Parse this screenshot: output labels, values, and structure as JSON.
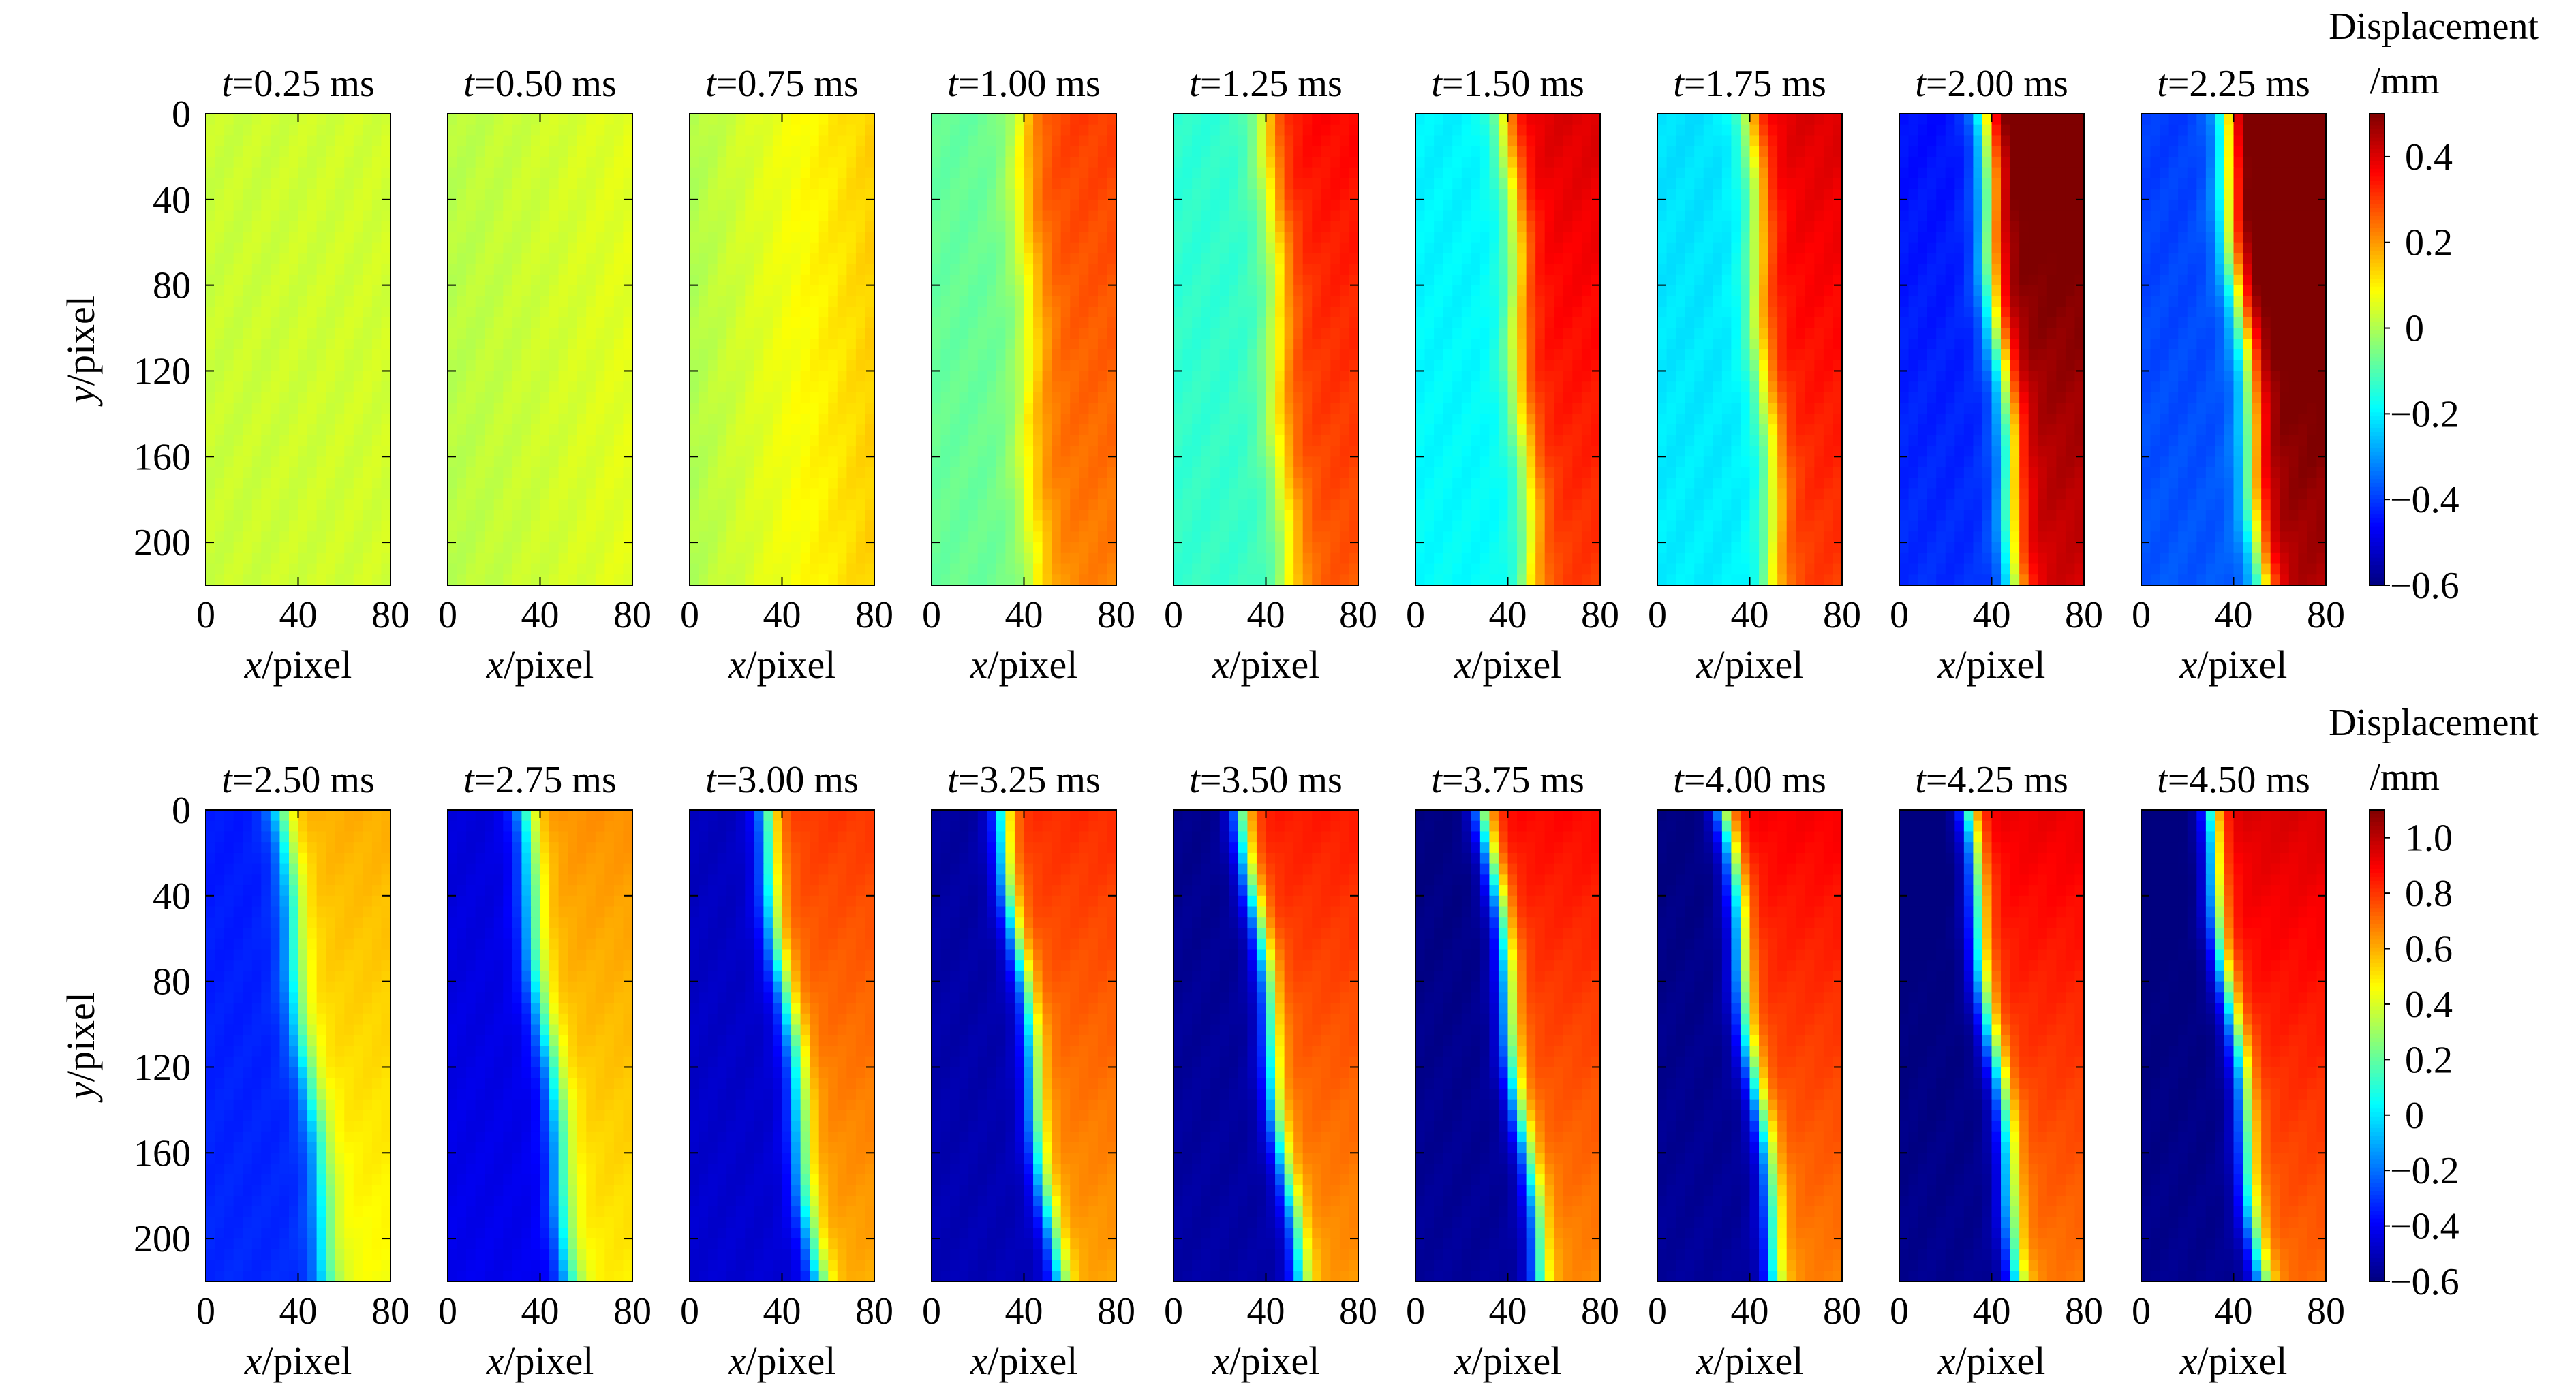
{
  "chart_data": {
    "type": "heatmap",
    "quantity": "Displacement",
    "unit": "/mm",
    "x_range": [
      0,
      80
    ],
    "y_range": [
      0,
      220
    ],
    "y_inverted": true,
    "xlabel_var": "x",
    "xlabel_unit": "/pixel",
    "ylabel_var": "y",
    "ylabel_unit": "/pixel",
    "x_ticks": [
      0,
      40,
      80
    ],
    "y_ticks": [
      0,
      40,
      80,
      120,
      160,
      200
    ],
    "colormap": [
      "#00007f",
      "#0000ff",
      "#0080ff",
      "#00ffff",
      "#80ff80",
      "#ffff00",
      "#ff8000",
      "#ff0000",
      "#7f0000"
    ],
    "rows": [
      {
        "colorbar_range": [
          -0.6,
          0.5
        ],
        "colorbar_ticks": [
          0.4,
          0.2,
          0,
          -0.2,
          -0.4,
          -0.6
        ],
        "colorbar_tick_labels": [
          "0.4",
          "0.2",
          "0",
          "−0.2",
          "−0.4",
          "−0.6"
        ],
        "panels": [
          {
            "var": "t",
            "time": "=0.25 ms",
            "params": {
              "left": 0.03,
              "right": 0.04,
              "slope": 0.0,
              "base": 0.0,
              "half": 0.0
            }
          },
          {
            "var": "t",
            "time": "=0.50 ms",
            "params": {
              "left": 0.01,
              "right": 0.06,
              "slope": 0.02,
              "base": 0.0,
              "half": 0.0
            }
          },
          {
            "var": "t",
            "time": "=0.75 ms",
            "params": {
              "left": 0.0,
              "right": 0.14,
              "slope": 0.03,
              "base": 0.0,
              "half": 0.0
            }
          },
          {
            "var": "t",
            "time": "=1.00 ms",
            "params": {
              "left": -0.08,
              "right": 0.3,
              "slope": 0.06,
              "base": 0.5,
              "half": 0.16
            }
          },
          {
            "var": "t",
            "time": "=1.25 ms",
            "params": {
              "left": -0.14,
              "right": 0.36,
              "slope": 0.1,
              "base": 0.52,
              "half": 0.15
            }
          },
          {
            "var": "t",
            "time": "=1.50 ms",
            "params": {
              "left": -0.2,
              "right": 0.4,
              "slope": 0.13,
              "base": 0.5,
              "half": 0.13
            }
          },
          {
            "var": "t",
            "time": "=1.75 ms",
            "params": {
              "left": -0.22,
              "right": 0.4,
              "slope": 0.15,
              "base": 0.5,
              "half": 0.13
            }
          },
          {
            "var": "t",
            "time": "=2.00 ms",
            "params": {
              "left": -0.45,
              "right": 0.55,
              "slope": 0.2,
              "base": 0.45,
              "half": 0.12
            }
          },
          {
            "var": "t",
            "time": "=2.25 ms",
            "params": {
              "left": -0.4,
              "right": 0.6,
              "slope": 0.22,
              "base": 0.45,
              "half": 0.12
            }
          }
        ]
      },
      {
        "colorbar_range": [
          -0.6,
          1.1
        ],
        "colorbar_ticks": [
          1.0,
          0.8,
          0.6,
          0.4,
          0.2,
          0,
          -0.2,
          -0.4,
          -0.6
        ],
        "colorbar_tick_labels": [
          "1.0",
          "0.8",
          "0.6",
          "0.4",
          "0.2",
          "0",
          "−0.2",
          "−0.4",
          "−0.6"
        ],
        "panels": [
          {
            "var": "t",
            "time": "=2.50 ms",
            "params": {
              "left": -0.35,
              "right": 0.6,
              "slope": 0.28,
              "base": 0.4,
              "half": 0.12
            }
          },
          {
            "var": "t",
            "time": "=2.75 ms",
            "params": {
              "left": -0.45,
              "right": 0.65,
              "slope": 0.28,
              "base": 0.4,
              "half": 0.12
            }
          },
          {
            "var": "t",
            "time": "=3.00 ms",
            "params": {
              "left": -0.5,
              "right": 0.8,
              "slope": 0.3,
              "base": 0.4,
              "half": 0.11
            }
          },
          {
            "var": "t",
            "time": "=3.25 ms",
            "params": {
              "left": -0.55,
              "right": 0.82,
              "slope": 0.3,
              "base": 0.38,
              "half": 0.1
            }
          },
          {
            "var": "t",
            "time": "=3.50 ms",
            "params": {
              "left": -0.58,
              "right": 0.85,
              "slope": 0.3,
              "base": 0.38,
              "half": 0.1
            }
          },
          {
            "var": "t",
            "time": "=3.75 ms",
            "params": {
              "left": -0.6,
              "right": 0.88,
              "slope": 0.3,
              "base": 0.38,
              "half": 0.1
            }
          },
          {
            "var": "t",
            "time": "=4.00 ms",
            "params": {
              "left": -0.6,
              "right": 0.9,
              "slope": 0.3,
              "base": 0.36,
              "half": 0.1
            }
          },
          {
            "var": "t",
            "time": "=4.25 ms",
            "params": {
              "left": -0.62,
              "right": 0.92,
              "slope": 0.3,
              "base": 0.36,
              "half": 0.1
            }
          },
          {
            "var": "t",
            "time": "=4.50 ms",
            "params": {
              "left": -0.62,
              "right": 0.95,
              "slope": 0.3,
              "base": 0.36,
              "half": 0.1
            }
          }
        ]
      }
    ]
  }
}
